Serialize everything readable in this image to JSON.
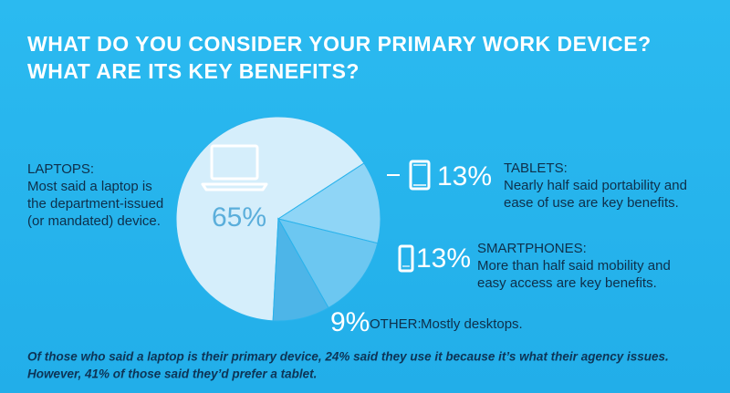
{
  "chart_data": {
    "type": "pie",
    "title": [
      "WHAT DO YOU CONSIDER YOUR PRIMARY WORK DEVICE?",
      "WHAT ARE ITS KEY BENEFITS?"
    ],
    "categories": [
      "LAPTOPS:",
      "TABLETS:",
      "SMARTPHONES:",
      "OTHER:"
    ],
    "values": [
      65,
      13,
      13,
      9
    ],
    "value_labels": [
      "65%",
      "13%",
      "13%",
      "9%"
    ],
    "colors": [
      "#d5eefb",
      "#8fd5f6",
      "#6cc7f1",
      "#4db5e8"
    ],
    "descriptions": [
      [
        "Most said a laptop is",
        "the department-issued",
        "(or mandated) device."
      ],
      [
        "Nearly half said portability and",
        "ease of use are key benefits."
      ],
      [
        "More than half said mobility and",
        "easy access are key benefits."
      ],
      [
        "Mostly desktops."
      ]
    ],
    "footnote": [
      "Of those who said a laptop is their primary device, 24% said they use it because it’s what their agency issues.",
      "However, 41% of those said they’d prefer a tablet."
    ]
  }
}
